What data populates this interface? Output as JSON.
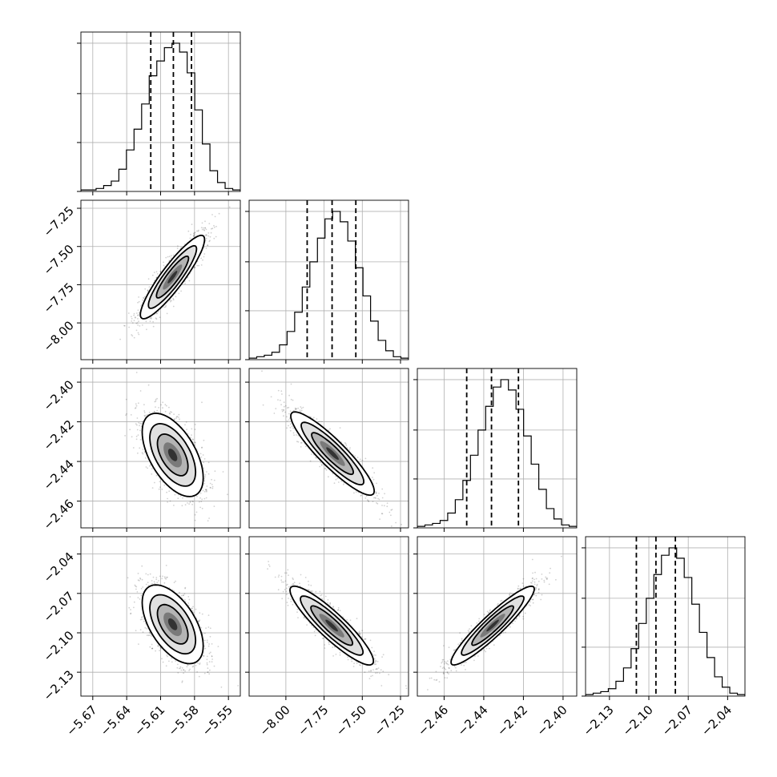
{
  "chart_data": {
    "type": "corner",
    "parameters": [
      {
        "ticks": [
          -5.67,
          -5.64,
          -5.61,
          -5.58,
          -5.55
        ],
        "tick_labels": [
          "−5.67",
          "−5.64",
          "−5.61",
          "−5.58",
          "−5.55"
        ],
        "range": [
          -5.6805,
          -5.5395
        ],
        "quantiles": [
          -5.6187,
          -5.5987,
          -5.5827
        ],
        "hist": [
          0.01,
          0.01,
          0.02,
          0.04,
          0.07,
          0.15,
          0.28,
          0.42,
          0.59,
          0.78,
          0.88,
          0.97,
          1.0,
          0.94,
          0.8,
          0.55,
          0.32,
          0.14,
          0.06,
          0.02,
          0.01
        ]
      },
      {
        "ticks": [
          -8.0,
          -7.75,
          -7.5,
          -7.25
        ],
        "tick_labels": [
          "−8.00",
          "−7.75",
          "−7.50",
          "−7.25"
        ],
        "range": [
          -8.2405,
          -7.1975
        ],
        "quantiles": [
          -7.8607,
          -7.6977,
          -7.5423
        ],
        "hist": [
          0.01,
          0.02,
          0.03,
          0.05,
          0.1,
          0.19,
          0.32,
          0.49,
          0.66,
          0.82,
          0.95,
          1.0,
          0.93,
          0.8,
          0.62,
          0.43,
          0.26,
          0.13,
          0.06,
          0.02,
          0.01
        ]
      },
      {
        "ticks": [
          -2.46,
          -2.44,
          -2.42,
          -2.4
        ],
        "tick_labels": [
          "−2.46",
          "−2.44",
          "−2.42",
          "−2.40"
        ],
        "range": [
          -2.4735,
          -2.3931
        ],
        "quantiles": [
          -2.4486,
          -2.4361,
          -2.4225
        ],
        "hist": [
          0.01,
          0.02,
          0.03,
          0.05,
          0.1,
          0.19,
          0.32,
          0.49,
          0.66,
          0.82,
          0.95,
          1.0,
          0.93,
          0.8,
          0.62,
          0.43,
          0.26,
          0.13,
          0.06,
          0.02,
          0.01
        ]
      },
      {
        "ticks": [
          -2.13,
          -2.1,
          -2.07,
          -2.04
        ],
        "tick_labels": [
          "−2.13",
          "−2.10",
          "−2.07",
          "−2.04"
        ],
        "range": [
          -2.1482,
          -2.0268
        ],
        "quantiles": [
          -2.1095,
          -2.0946,
          -2.0798
        ],
        "hist": [
          0.01,
          0.02,
          0.03,
          0.05,
          0.1,
          0.19,
          0.32,
          0.49,
          0.66,
          0.82,
          0.95,
          1.0,
          0.93,
          0.8,
          0.62,
          0.43,
          0.26,
          0.13,
          0.06,
          0.02,
          0.01
        ]
      }
    ],
    "pairs": [
      {
        "x": 0,
        "y": 1,
        "mean": [
          -5.5995,
          -7.7
        ],
        "sigma": [
          0.0142,
          0.1365
        ],
        "rho": 0.9
      },
      {
        "x": 0,
        "y": 2,
        "mean": [
          -5.5993,
          -2.4367
        ],
        "sigma": [
          0.0135,
          0.0105
        ],
        "rho": -0.55
      },
      {
        "x": 1,
        "y": 2,
        "mean": [
          -7.695,
          -2.436
        ],
        "sigma": [
          0.1365,
          0.0105
        ],
        "rho": -0.9
      },
      {
        "x": 0,
        "y": 3,
        "mean": [
          -5.5993,
          -2.0935
        ],
        "sigma": [
          0.0135,
          0.015
        ],
        "rho": -0.55
      },
      {
        "x": 1,
        "y": 3,
        "mean": [
          -7.7,
          -2.0945
        ],
        "sigma": [
          0.1365,
          0.015
        ],
        "rho": -0.9
      },
      {
        "x": 2,
        "y": 3,
        "mean": [
          -2.4355,
          -2.0945
        ],
        "sigma": [
          0.0105,
          0.015
        ],
        "rho": 0.93
      }
    ],
    "contour_levels_sigma": [
      1,
      1.5,
      2
    ],
    "grid": true,
    "colors": {
      "line": "#000000",
      "points": "#000000",
      "grid": "#b0b0b0"
    }
  }
}
